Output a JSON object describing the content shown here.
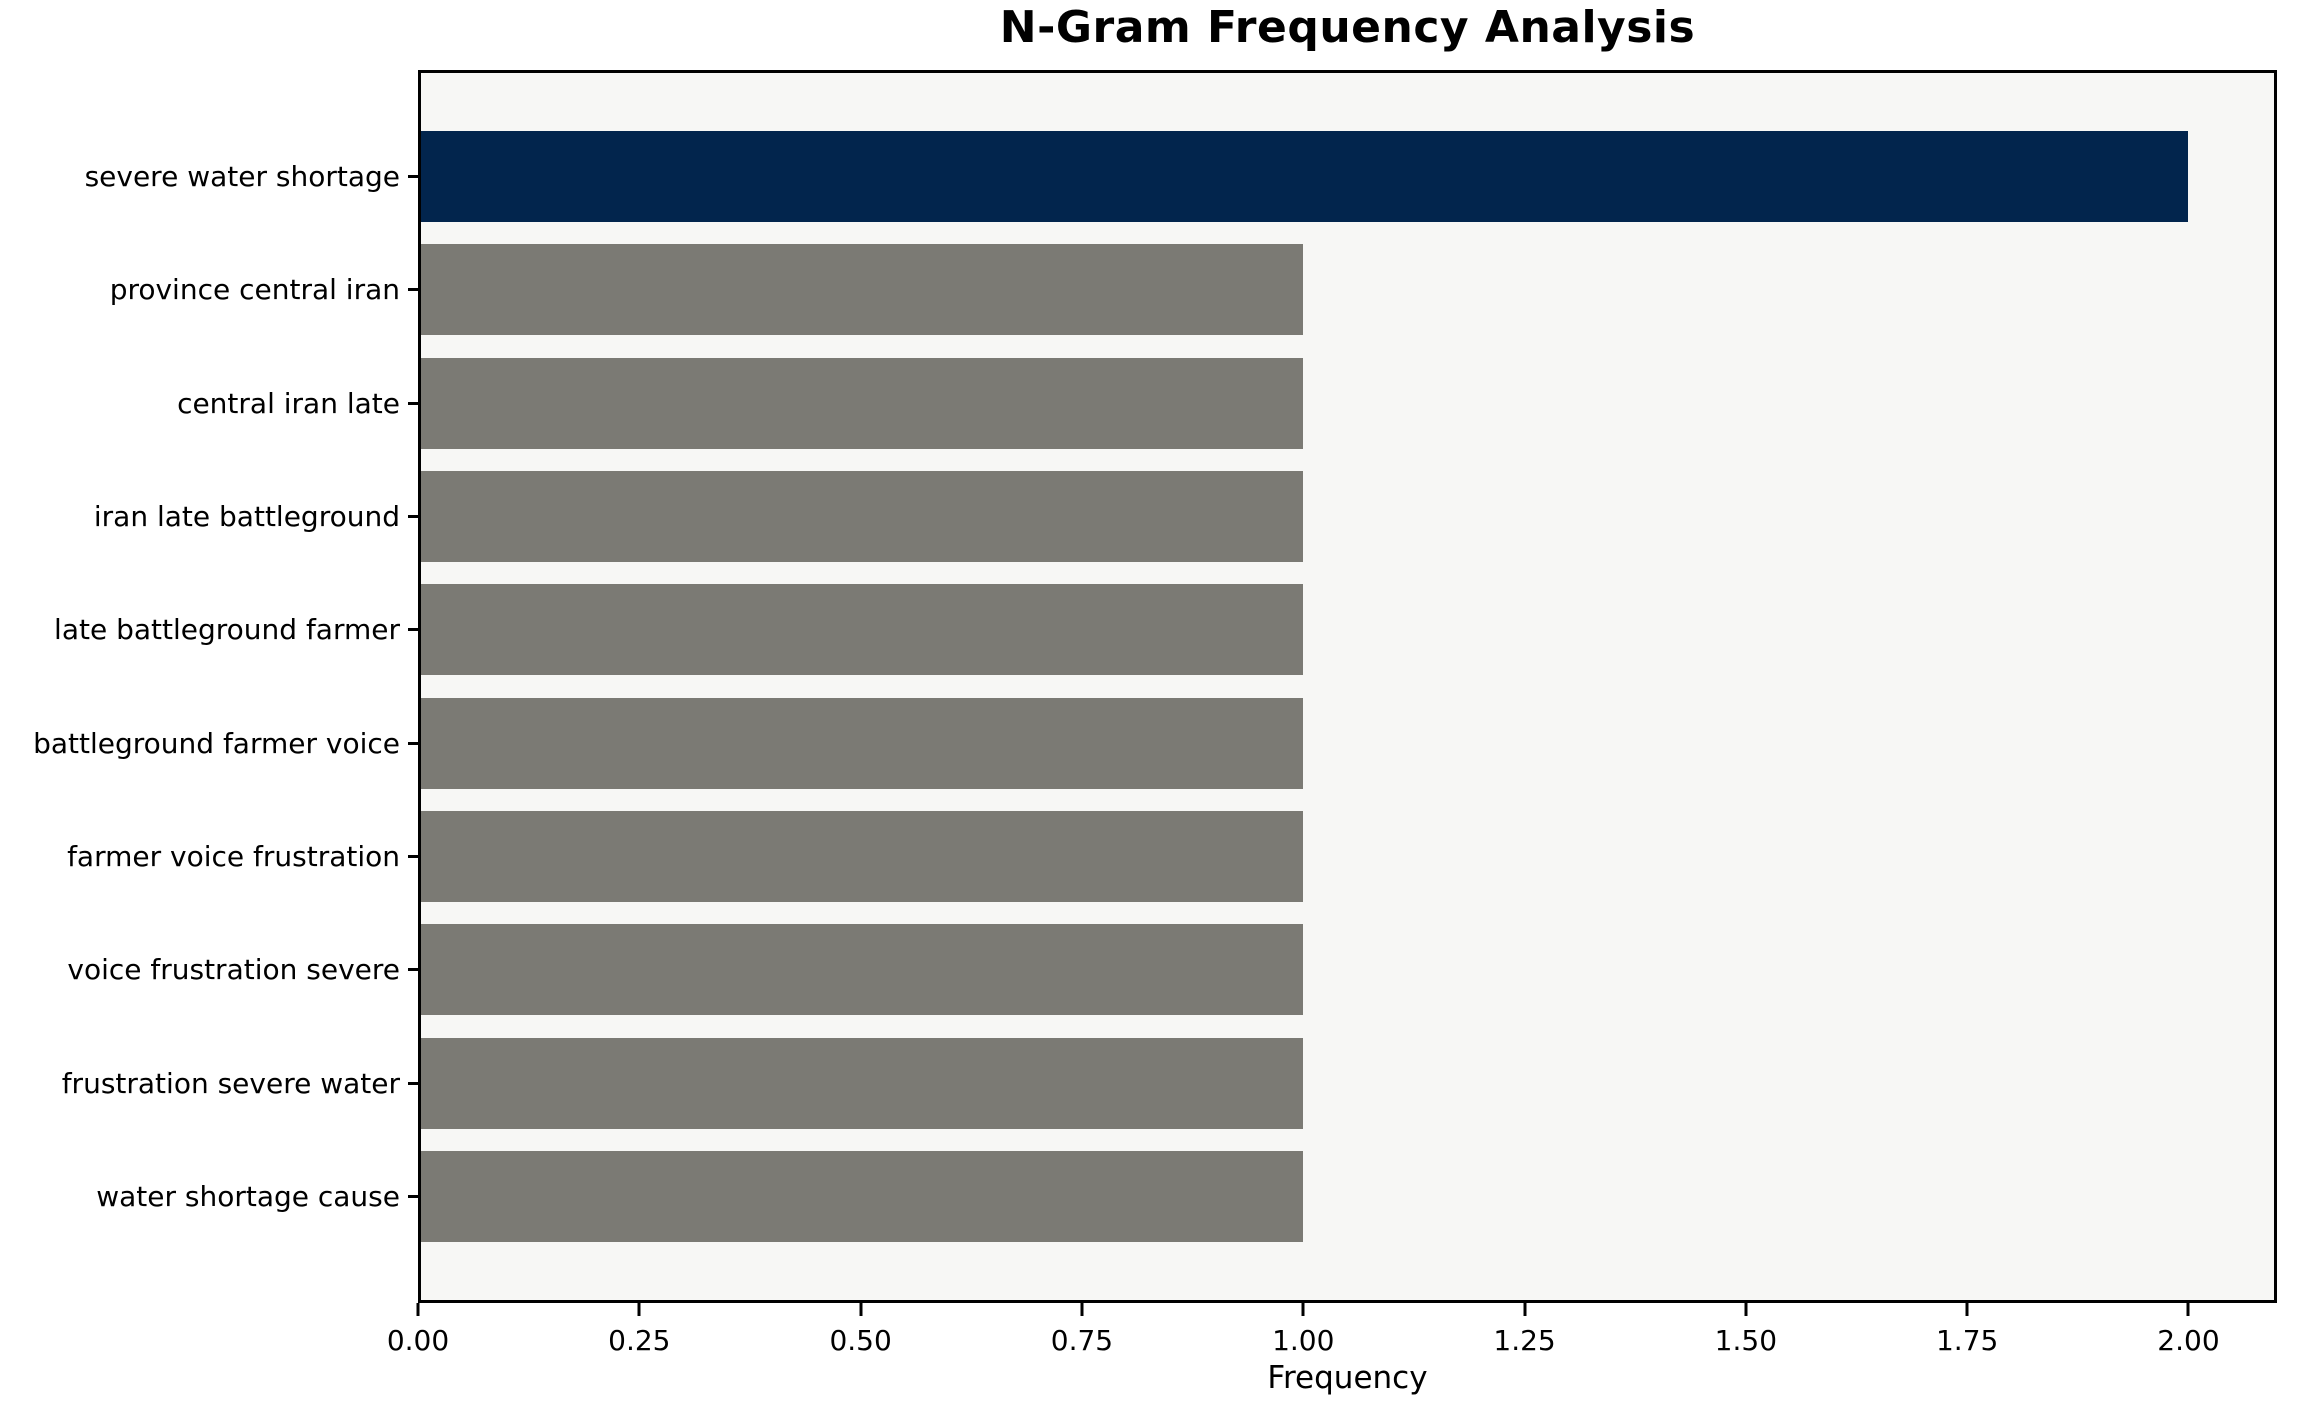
{
  "chart": {
    "title": "N-Gram Frequency Analysis",
    "xlabel": "Frequency"
  },
  "chart_data": {
    "type": "bar",
    "orientation": "horizontal",
    "title": "N-Gram Frequency Analysis",
    "xlabel": "Frequency",
    "ylabel": "",
    "categories": [
      "severe water shortage",
      "province central iran",
      "central iran late",
      "iran late battleground",
      "late battleground farmer",
      "battleground farmer voice",
      "farmer voice frustration",
      "voice frustration severe",
      "frustration severe water",
      "water shortage cause"
    ],
    "values": [
      2,
      1,
      1,
      1,
      1,
      1,
      1,
      1,
      1,
      1
    ],
    "xlim": [
      0,
      2.1
    ],
    "xticks": [
      0,
      0.25,
      0.5,
      0.75,
      1,
      1.25,
      1.5,
      1.75,
      2
    ],
    "xtick_labels": [
      "0.00",
      "0.25",
      "0.50",
      "0.75",
      "1.00",
      "1.25",
      "1.50",
      "1.75",
      "2.00"
    ],
    "grid": false,
    "legend": false,
    "colors": {
      "highlight_bar": "#02254d",
      "default_bar": "#7b7a74",
      "plot_background": "#f7f7f5",
      "figure_background": "#ffffff",
      "axis": "#000000",
      "bar_colors": [
        "#02254d",
        "#7b7a74",
        "#7b7a74",
        "#7b7a74",
        "#7b7a74",
        "#7b7a74",
        "#7b7a74",
        "#7b7a74",
        "#7b7a74",
        "#7b7a74"
      ]
    }
  }
}
